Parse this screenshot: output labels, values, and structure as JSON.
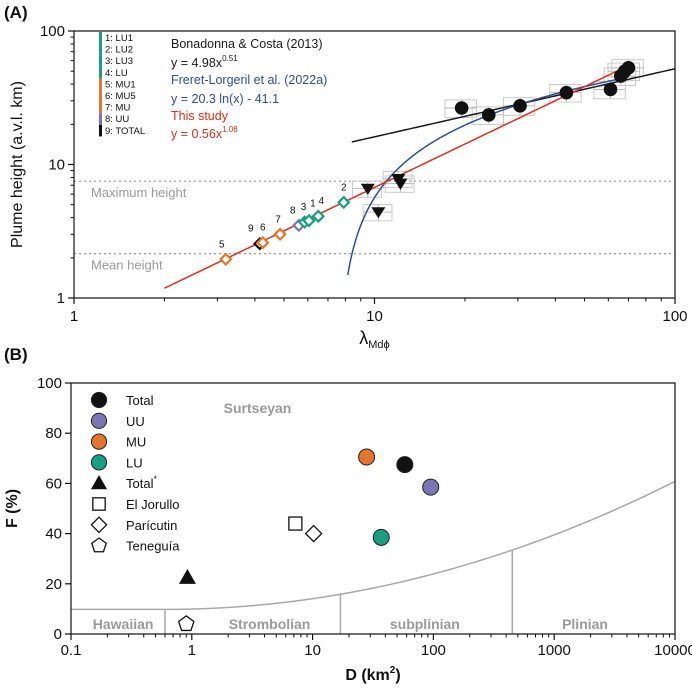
{
  "colors": {
    "LU1": "#1a9e80",
    "LU2": "#1a9e80",
    "LU3": "#1a9e80",
    "LU": "#1a9e80",
    "MU1": "#e2762e",
    "MU5": "#e2762e",
    "MU": "#e2762e",
    "UU": "#7c74b5",
    "TOTAL": "#111111",
    "black_line": "#1a1a1a",
    "blue_line": "#2d4e9c",
    "red_line": "#d7301f",
    "grey_text": "#9a9a9a",
    "grey_line": "#a8a8a8"
  },
  "panels": {
    "a": "(A)",
    "b": "(B)"
  },
  "chart_data": [
    {
      "type": "scatter",
      "title": "",
      "xlabel_main": "λ",
      "xlabel_sub": "Mdϕ",
      "ylabel": "Plume height (a.v.l. km)",
      "xscale": "log",
      "yscale": "log",
      "xlim": [
        1,
        100
      ],
      "ylim": [
        1,
        100
      ],
      "xticks": [
        {
          "v": 1,
          "label": "1"
        },
        {
          "v": 10,
          "label": "10"
        },
        {
          "v": 100,
          "label": "100"
        }
      ],
      "yticks": [
        {
          "v": 1,
          "label": "1"
        },
        {
          "v": 10,
          "label": "10"
        },
        {
          "v": 100,
          "label": "100"
        }
      ],
      "hlines": [
        {
          "name": "max-height-line",
          "y": 7.5,
          "label": "Maximum height"
        },
        {
          "name": "mean-height-line",
          "y": 2.15,
          "label": "Mean height"
        }
      ],
      "curves": [
        {
          "name": "bonadonna-costa-line",
          "label": "Bonadonna & Costa (2013)",
          "equation": "y = 4.98x",
          "exp": "0.51",
          "color_key": "black_line",
          "kind": "power",
          "a": 4.98,
          "b": 0.51,
          "x_range": [
            8.4,
            100
          ]
        },
        {
          "name": "freret-lorgeril-curve",
          "label": "Freret-Lorgeril et al. (2022a)",
          "equation": "y = 20.3 ln(x) - 41.1",
          "exp": "",
          "color_key": "blue_line",
          "kind": "log",
          "a": 20.3,
          "b": -41.1,
          "x_range": [
            8.15,
            70
          ]
        },
        {
          "name": "this-study-line",
          "label": "This study",
          "equation": "y = 0.56x",
          "exp": "1.08",
          "color_key": "red_line",
          "kind": "power",
          "a": 0.56,
          "b": 1.08,
          "x_range": [
            2,
            70
          ]
        }
      ],
      "legend_units": [
        {
          "label": "1: LU1",
          "color_key": "LU1"
        },
        {
          "label": "2: LU2",
          "color_key": "LU2"
        },
        {
          "label": "3: LU3",
          "color_key": "LU3"
        },
        {
          "label": "4: LU",
          "color_key": "LU"
        },
        {
          "label": "5: MU1",
          "color_key": "MU1"
        },
        {
          "label": "6: MU5",
          "color_key": "MU5"
        },
        {
          "label": "7: MU",
          "color_key": "MU"
        },
        {
          "label": "8: UU",
          "color_key": "UU"
        },
        {
          "label": "9: TOTAL",
          "color_key": "TOTAL"
        }
      ],
      "this_study_points": [
        {
          "label": "5",
          "x": 3.2,
          "y": 1.95,
          "color_key": "MU1"
        },
        {
          "label": "9",
          "x": 4.15,
          "y": 2.55,
          "color_key": "TOTAL"
        },
        {
          "label": "6",
          "x": 4.25,
          "y": 2.6,
          "color_key": "MU5"
        },
        {
          "label": "7",
          "x": 4.85,
          "y": 3.0,
          "color_key": "MU"
        },
        {
          "label": "8",
          "x": 5.6,
          "y": 3.5,
          "color_key": "UU"
        },
        {
          "label": "3",
          "x": 5.85,
          "y": 3.7,
          "color_key": "LU3"
        },
        {
          "label": "1",
          "x": 6.05,
          "y": 3.8,
          "color_key": "LU1"
        },
        {
          "label": "4",
          "x": 6.5,
          "y": 4.1,
          "color_key": "LU"
        },
        {
          "label": "2",
          "x": 7.9,
          "y": 5.2,
          "color_key": "LU2"
        }
      ],
      "triangle_points": [
        {
          "x": 9.5,
          "y": 6.6
        },
        {
          "x": 10.3,
          "y": 4.4
        },
        {
          "x": 12.2,
          "y": 7.2
        },
        {
          "x": 12.0,
          "y": 7.8
        }
      ],
      "circle_points": [
        {
          "x": 19.5,
          "y": 26.5
        },
        {
          "x": 24.0,
          "y": 23.5
        },
        {
          "x": 30.5,
          "y": 27.5
        },
        {
          "x": 43.5,
          "y": 34.5
        },
        {
          "x": 61.0,
          "y": 36.5
        },
        {
          "x": 66.0,
          "y": 46.0
        },
        {
          "x": 68.0,
          "y": 50.0
        },
        {
          "x": 70.0,
          "y": 53.0
        }
      ]
    },
    {
      "type": "scatter",
      "title": "",
      "xlabel": "D (km",
      "xlabel_sup": "2",
      "xlabel_end": ")",
      "ylabel": "F (%)",
      "xscale": "log",
      "yscale": "linear",
      "xlim": [
        0.1,
        10000
      ],
      "ylim": [
        0,
        100
      ],
      "xticks": [
        {
          "v": 0.1,
          "label": "0.1"
        },
        {
          "v": 1,
          "label": "1"
        },
        {
          "v": 10,
          "label": "10"
        },
        {
          "v": 100,
          "label": "100"
        },
        {
          "v": 1000,
          "label": "1000"
        },
        {
          "v": 10000,
          "label": "10000"
        }
      ],
      "yticks": [
        {
          "v": 0,
          "label": "0"
        },
        {
          "v": 20,
          "label": "20"
        },
        {
          "v": 40,
          "label": "40"
        },
        {
          "v": 60,
          "label": "60"
        },
        {
          "v": 80,
          "label": "80"
        },
        {
          "v": 100,
          "label": "100"
        }
      ],
      "region_labels": [
        {
          "name": "surtseyan-label",
          "text": "Surtseyan",
          "x": 3.5,
          "y": 90
        },
        {
          "name": "hawaiian-label",
          "text": "Hawaiian",
          "x": 0.27,
          "y": 4
        },
        {
          "name": "strombolian-label",
          "text": "Strombolian",
          "x": 4.4,
          "y": 4
        },
        {
          "name": "subplinian-label",
          "text": "subplinian",
          "x": 85,
          "y": 4
        },
        {
          "name": "plinian-label",
          "text": "Plinian",
          "x": 1800,
          "y": 4
        }
      ],
      "boundary_curve": {
        "x0": 0.6,
        "y0": 9.8,
        "ymax": 60.8,
        "x_right": 10000
      },
      "boundary_verticals": [
        0.6,
        17,
        450
      ],
      "legend": [
        {
          "label": "Total",
          "marker": "circle",
          "color_key": "TOTAL"
        },
        {
          "label": "UU",
          "marker": "circle",
          "color_key": "UU"
        },
        {
          "label": "MU",
          "marker": "circle",
          "color_key": "MU"
        },
        {
          "label": "LU",
          "marker": "circle",
          "color_key": "LU"
        },
        {
          "label": "Total",
          "label_sup": "*",
          "marker": "triangle",
          "color_key": "TOTAL"
        },
        {
          "label": "El Jorullo",
          "marker": "square",
          "color_key": "TOTAL"
        },
        {
          "label": "Parícutin",
          "marker": "diamond",
          "color_key": "TOTAL"
        },
        {
          "label": "Teneguía",
          "marker": "pentagon",
          "color_key": "TOTAL"
        }
      ],
      "points": [
        {
          "name": "total",
          "x": 58,
          "y": 67.5,
          "marker": "circle",
          "color_key": "TOTAL"
        },
        {
          "name": "uu",
          "x": 95,
          "y": 58.5,
          "marker": "circle",
          "color_key": "UU"
        },
        {
          "name": "mu",
          "x": 28,
          "y": 70.5,
          "marker": "circle",
          "color_key": "MU"
        },
        {
          "name": "lu",
          "x": 37,
          "y": 38.5,
          "marker": "circle",
          "color_key": "LU"
        },
        {
          "name": "total-star",
          "x": 0.92,
          "y": 22.5,
          "marker": "triangle",
          "color_key": "TOTAL"
        },
        {
          "name": "el-jorullo",
          "x": 7.2,
          "y": 44,
          "marker": "square",
          "color_key": "TOTAL"
        },
        {
          "name": "paricutin",
          "x": 10.2,
          "y": 40,
          "marker": "diamond",
          "color_key": "TOTAL"
        },
        {
          "name": "teneguia",
          "x": 0.9,
          "y": 4,
          "marker": "pentagon",
          "color_key": "TOTAL"
        }
      ]
    }
  ]
}
